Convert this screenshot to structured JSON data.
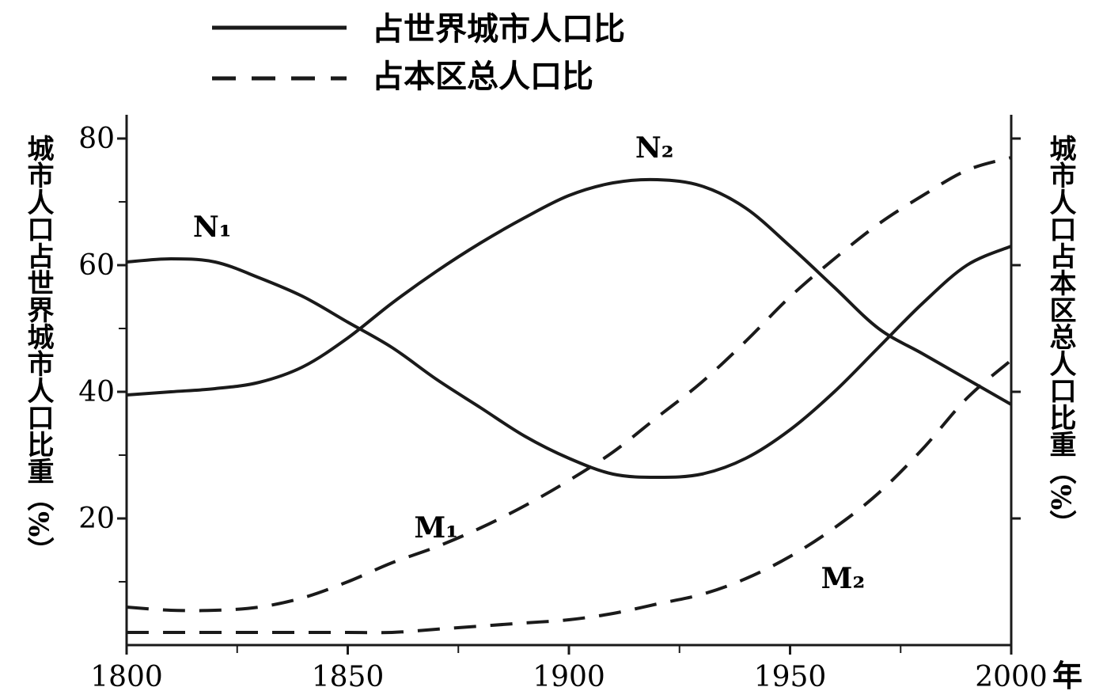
{
  "chart_data": {
    "type": "line",
    "title": "",
    "legend": {
      "placement": "top",
      "entries": [
        {
          "label": "占世界城市人口比",
          "style": "solid"
        },
        {
          "label": "占本区总人口比",
          "style": "dashed"
        }
      ]
    },
    "xlabel": "年",
    "ylabel_left": "城市人口占世界城市人口比重（%）",
    "ylabel_right": "城市人口占本区总人口比重（%）",
    "xlim": [
      1800,
      2000
    ],
    "ylim": [
      0,
      80
    ],
    "x_ticks": [
      1800,
      1850,
      1900,
      1950,
      2000
    ],
    "x_tick_labels": [
      "1800",
      "1850",
      "1900",
      "1950",
      "2000"
    ],
    "y_ticks": [
      20,
      40,
      60,
      80
    ],
    "y_tick_labels": [
      "20",
      "40",
      "60",
      "80"
    ],
    "grid": false,
    "series": [
      {
        "name": "N₁",
        "style": "solid",
        "points": [
          [
            1800,
            60.5
          ],
          [
            1810,
            61
          ],
          [
            1820,
            60.5
          ],
          [
            1830,
            58
          ],
          [
            1840,
            55
          ],
          [
            1850,
            51
          ],
          [
            1860,
            47
          ],
          [
            1870,
            42
          ],
          [
            1880,
            37.5
          ],
          [
            1890,
            33
          ],
          [
            1900,
            29.5
          ],
          [
            1910,
            27
          ],
          [
            1920,
            26.5
          ],
          [
            1930,
            27
          ],
          [
            1940,
            29.5
          ],
          [
            1950,
            34
          ],
          [
            1960,
            40
          ],
          [
            1970,
            47
          ],
          [
            1980,
            54
          ],
          [
            1990,
            60
          ],
          [
            2000,
            63
          ]
        ]
      },
      {
        "name": "N₂",
        "style": "solid",
        "points": [
          [
            1800,
            39.5
          ],
          [
            1810,
            40
          ],
          [
            1820,
            40.5
          ],
          [
            1830,
            41.5
          ],
          [
            1840,
            44
          ],
          [
            1850,
            48.5
          ],
          [
            1860,
            54
          ],
          [
            1870,
            59
          ],
          [
            1880,
            63.5
          ],
          [
            1890,
            67.5
          ],
          [
            1900,
            71
          ],
          [
            1910,
            73
          ],
          [
            1920,
            73.5
          ],
          [
            1930,
            72.5
          ],
          [
            1940,
            69
          ],
          [
            1950,
            63
          ],
          [
            1960,
            56.5
          ],
          [
            1970,
            50
          ],
          [
            1980,
            46
          ],
          [
            1990,
            42
          ],
          [
            2000,
            38
          ]
        ]
      },
      {
        "name": "M₁",
        "style": "dashed",
        "points": [
          [
            1800,
            6
          ],
          [
            1810,
            5.5
          ],
          [
            1820,
            5.5
          ],
          [
            1830,
            6
          ],
          [
            1840,
            7.5
          ],
          [
            1850,
            10
          ],
          [
            1860,
            13
          ],
          [
            1870,
            15.5
          ],
          [
            1880,
            18.5
          ],
          [
            1890,
            22
          ],
          [
            1900,
            26
          ],
          [
            1910,
            30.5
          ],
          [
            1920,
            36
          ],
          [
            1930,
            41.5
          ],
          [
            1940,
            48
          ],
          [
            1950,
            55
          ],
          [
            1960,
            61
          ],
          [
            1970,
            66.5
          ],
          [
            1980,
            71
          ],
          [
            1990,
            75
          ],
          [
            2000,
            77
          ]
        ]
      },
      {
        "name": "M₂",
        "style": "dashed",
        "points": [
          [
            1800,
            2
          ],
          [
            1810,
            2
          ],
          [
            1820,
            2
          ],
          [
            1830,
            2
          ],
          [
            1840,
            2
          ],
          [
            1850,
            2
          ],
          [
            1860,
            2
          ],
          [
            1870,
            2.5
          ],
          [
            1880,
            3
          ],
          [
            1890,
            3.5
          ],
          [
            1900,
            4
          ],
          [
            1910,
            5
          ],
          [
            1920,
            6.5
          ],
          [
            1930,
            8
          ],
          [
            1940,
            10.5
          ],
          [
            1950,
            14
          ],
          [
            1960,
            18.5
          ],
          [
            1970,
            24
          ],
          [
            1980,
            31
          ],
          [
            1990,
            39
          ],
          [
            2000,
            45
          ]
        ]
      }
    ]
  }
}
